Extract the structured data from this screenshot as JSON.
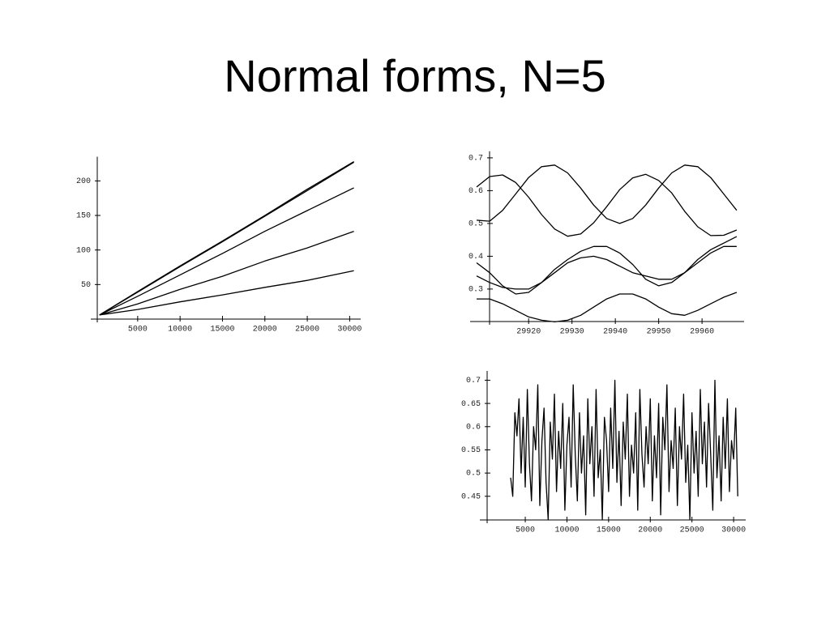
{
  "slide_title": "Normal forms, N=5",
  "chart_data": [
    {
      "type": "line",
      "x": [
        500,
        5000,
        10000,
        15000,
        20000,
        25000,
        30500
      ],
      "series": [
        {
          "color": "#000000",
          "values": [
            6,
            40,
            77,
            113,
            150,
            188,
            228
          ]
        },
        {
          "color": "#000000",
          "values": [
            6,
            39,
            76,
            112,
            149,
            186,
            227
          ]
        },
        {
          "color": "#000000",
          "values": [
            6,
            33,
            64,
            95,
            127,
            157,
            190
          ]
        },
        {
          "color": "#000000",
          "values": [
            6,
            22,
            43,
            62,
            84,
            103,
            127
          ]
        },
        {
          "color": "#000000",
          "values": [
            6,
            14,
            25,
            35,
            46,
            56,
            70
          ]
        }
      ],
      "xlim": [
        -530,
        31300
      ],
      "ylim": [
        0,
        235
      ],
      "xticks": [
        5000,
        10000,
        15000,
        20000,
        25000,
        30000
      ],
      "yticks": [
        50,
        100,
        150,
        200
      ]
    },
    {
      "type": "line",
      "x": [
        29908,
        29911,
        29914,
        29917,
        29920,
        29923,
        29926,
        29929,
        29932,
        29935,
        29938,
        29941,
        29944,
        29947,
        29950,
        29953,
        29956,
        29959,
        29962,
        29965,
        29968
      ],
      "series": [
        {
          "color": "#000000",
          "values": [
            0.611,
            0.643,
            0.648,
            0.625,
            0.58,
            0.527,
            0.483,
            0.461,
            0.468,
            0.502,
            0.551,
            0.603,
            0.639,
            0.65,
            0.631,
            0.593,
            0.537,
            0.49,
            0.463,
            0.464,
            0.48
          ]
        },
        {
          "color": "#000000",
          "values": [
            0.51,
            0.507,
            0.54,
            0.59,
            0.64,
            0.673,
            0.678,
            0.654,
            0.608,
            0.556,
            0.515,
            0.5,
            0.515,
            0.556,
            0.608,
            0.654,
            0.678,
            0.673,
            0.64,
            0.59,
            0.54
          ]
        },
        {
          "color": "#000000",
          "values": [
            0.38,
            0.35,
            0.31,
            0.285,
            0.29,
            0.32,
            0.36,
            0.39,
            0.415,
            0.43,
            0.43,
            0.41,
            0.375,
            0.33,
            0.31,
            0.32,
            0.35,
            0.39,
            0.42,
            0.44,
            0.46
          ]
        },
        {
          "color": "#000000",
          "values": [
            0.34,
            0.32,
            0.305,
            0.3,
            0.3,
            0.32,
            0.35,
            0.38,
            0.395,
            0.4,
            0.39,
            0.37,
            0.35,
            0.34,
            0.33,
            0.33,
            0.35,
            0.38,
            0.41,
            0.43,
            0.43
          ]
        },
        {
          "color": "#000000",
          "values": [
            0.27,
            0.27,
            0.255,
            0.235,
            0.215,
            0.205,
            0.2,
            0.205,
            0.22,
            0.245,
            0.27,
            0.285,
            0.285,
            0.27,
            0.245,
            0.225,
            0.22,
            0.235,
            0.255,
            0.275,
            0.29
          ]
        }
      ],
      "xlim": [
        29906.5,
        29969.7
      ],
      "ylim": [
        0.201,
        0.72
      ],
      "xticks": [
        29920,
        29930,
        29940,
        29950,
        29960
      ],
      "yticks": [
        0.3,
        0.4,
        0.5,
        0.6,
        0.7
      ]
    },
    {
      "type": "line",
      "x": [
        3250,
        3500,
        3750,
        4000,
        4250,
        4500,
        4750,
        5000,
        5250,
        5500,
        5750,
        6000,
        6250,
        6500,
        6750,
        7000,
        7250,
        7500,
        7750,
        8000,
        8250,
        8500,
        8750,
        9000,
        9250,
        9500,
        9750,
        10000,
        10250,
        10500,
        10750,
        11000,
        11250,
        11500,
        11750,
        12000,
        12250,
        12500,
        12750,
        13000,
        13250,
        13500,
        13750,
        14000,
        14250,
        14500,
        14750,
        15000,
        15250,
        15500,
        15750,
        16000,
        16250,
        16500,
        16750,
        17000,
        17250,
        17500,
        17750,
        18000,
        18250,
        18500,
        18750,
        19000,
        19250,
        19500,
        19750,
        20000,
        20250,
        20500,
        20750,
        21000,
        21250,
        21500,
        21750,
        22000,
        22250,
        22500,
        22750,
        23000,
        23250,
        23500,
        23750,
        24000,
        24250,
        24500,
        24750,
        25000,
        25250,
        25500,
        25750,
        26000,
        26250,
        26500,
        26750,
        27000,
        27250,
        27500,
        27750,
        28000,
        28250,
        28500,
        28750,
        29000,
        29250,
        29500,
        29750,
        30000,
        30250,
        30500
      ],
      "series": [
        {
          "color": "#000000",
          "values": [
            0.49,
            0.45,
            0.63,
            0.58,
            0.66,
            0.5,
            0.62,
            0.47,
            0.68,
            0.52,
            0.44,
            0.6,
            0.55,
            0.69,
            0.43,
            0.57,
            0.64,
            0.48,
            0.4,
            0.61,
            0.53,
            0.67,
            0.46,
            0.59,
            0.51,
            0.65,
            0.42,
            0.56,
            0.62,
            0.47,
            0.69,
            0.54,
            0.44,
            0.63,
            0.5,
            0.58,
            0.41,
            0.66,
            0.52,
            0.6,
            0.45,
            0.68,
            0.49,
            0.55,
            0.4,
            0.62,
            0.57,
            0.46,
            0.64,
            0.51,
            0.7,
            0.48,
            0.59,
            0.43,
            0.61,
            0.53,
            0.67,
            0.45,
            0.56,
            0.5,
            0.63,
            0.42,
            0.68,
            0.54,
            0.47,
            0.6,
            0.52,
            0.66,
            0.44,
            0.58,
            0.49,
            0.65,
            0.41,
            0.62,
            0.55,
            0.69,
            0.46,
            0.57,
            0.51,
            0.64,
            0.43,
            0.6,
            0.53,
            0.67,
            0.48,
            0.56,
            0.4,
            0.63,
            0.5,
            0.59,
            0.45,
            0.68,
            0.52,
            0.61,
            0.47,
            0.65,
            0.54,
            0.42,
            0.7,
            0.49,
            0.58,
            0.44,
            0.62,
            0.51,
            0.66,
            0.46,
            0.57,
            0.53,
            0.64,
            0.45
          ]
        }
      ],
      "xlim": [
        -450,
        31450
      ],
      "ylim": [
        0.399,
        0.72
      ],
      "xticks": [
        5000,
        10000,
        15000,
        20000,
        25000,
        30000
      ],
      "yticks": [
        0.45,
        0.5,
        0.55,
        0.6,
        0.65,
        0.7
      ]
    }
  ]
}
